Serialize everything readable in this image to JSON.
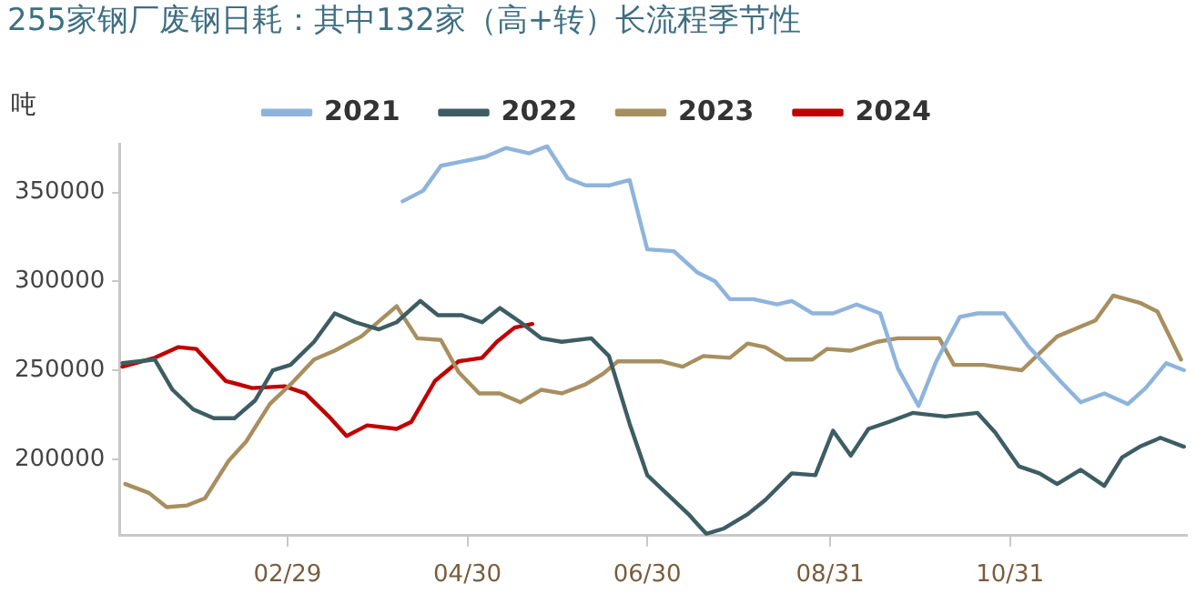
{
  "chart_data": {
    "type": "line",
    "title": "255家钢厂废钢日耗：其中132家（高+转）长流程季节性",
    "ylabel": "吨",
    "legend": "top",
    "grid": false,
    "marker": "none",
    "line_style": "solid",
    "xlim": [
      "--01-03",
      "--12-30"
    ],
    "ylim": [
      157000,
      377000
    ],
    "xticks": [
      {
        "value": "--02-29",
        "label": "02/29"
      },
      {
        "value": "--04-30",
        "label": "04/30"
      },
      {
        "value": "--06-30",
        "label": "06/30"
      },
      {
        "value": "--08-31",
        "label": "08/31"
      },
      {
        "value": "--10-31",
        "label": "10/31"
      }
    ],
    "yticks": [
      200000,
      250000,
      300000,
      350000
    ],
    "series": [
      {
        "name": "2021",
        "color": "#8fb4dc",
        "x": [
          "--04-08",
          "--04-15",
          "--04-21",
          "--04-27",
          "--05-06",
          "--05-13",
          "--05-21",
          "--05-27",
          "--06-03",
          "--06-09",
          "--06-17",
          "--06-24",
          "--06-30",
          "--07-09",
          "--07-17",
          "--07-23",
          "--07-28",
          "--08-05",
          "--08-13",
          "--08-18",
          "--08-25",
          "--09-01",
          "--09-09",
          "--09-17",
          "--09-23",
          "--09-30",
          "--10-06",
          "--10-14",
          "--10-20",
          "--10-29",
          "--11-06",
          "--11-17",
          "--11-24",
          "--12-02",
          "--12-10",
          "--12-16",
          "--12-23",
          "--12-29"
        ],
        "values": [
          345000,
          351000,
          365000,
          367000,
          370000,
          375000,
          372000,
          376000,
          358000,
          354000,
          354000,
          357000,
          318000,
          317000,
          305000,
          300000,
          290000,
          290000,
          287000,
          289000,
          282000,
          282000,
          287000,
          282000,
          251000,
          230000,
          255000,
          280000,
          282000,
          282000,
          264000,
          244000,
          232000,
          237000,
          231000,
          240000,
          254000,
          250000
        ]
      },
      {
        "name": "2022",
        "color": "#3d5d63",
        "x": [
          "--01-04",
          "--01-15",
          "--01-21",
          "--01-28",
          "--02-04",
          "--02-11",
          "--02-18",
          "--02-24",
          "--03-01",
          "--03-09",
          "--03-16",
          "--03-23",
          "--03-31",
          "--04-06",
          "--04-14",
          "--04-20",
          "--04-28",
          "--05-05",
          "--05-11",
          "--05-18",
          "--05-25",
          "--06-01",
          "--06-11",
          "--06-17",
          "--06-24",
          "--06-30",
          "--07-07",
          "--07-14",
          "--07-20",
          "--07-26",
          "--08-03",
          "--08-09",
          "--08-18",
          "--08-26",
          "--09-01",
          "--09-07",
          "--09-13",
          "--09-20",
          "--09-28",
          "--10-09",
          "--10-20",
          "--10-26",
          "--11-03",
          "--11-10",
          "--11-16",
          "--11-24",
          "--12-02",
          "--12-08",
          "--12-14",
          "--12-21",
          "--12-29"
        ],
        "values": [
          254000,
          256000,
          239000,
          228000,
          223000,
          223000,
          233000,
          250000,
          253000,
          266000,
          282000,
          277000,
          273000,
          277000,
          289000,
          281000,
          281000,
          277000,
          285000,
          277000,
          268000,
          266000,
          268000,
          258000,
          220000,
          191000,
          180000,
          169000,
          158000,
          161000,
          169000,
          177000,
          192000,
          191000,
          216000,
          202000,
          217000,
          221000,
          226000,
          224000,
          226000,
          215000,
          196000,
          192000,
          186000,
          194000,
          185000,
          201000,
          207000,
          212000,
          207000
        ]
      },
      {
        "name": "2023",
        "color": "#a88f5f",
        "x": [
          "--01-05",
          "--01-13",
          "--01-19",
          "--01-26",
          "--02-01",
          "--02-09",
          "--02-15",
          "--02-23",
          "--03-01",
          "--03-09",
          "--03-16",
          "--03-25",
          "--04-06",
          "--04-13",
          "--04-21",
          "--04-27",
          "--05-04",
          "--05-11",
          "--05-18",
          "--05-25",
          "--06-01",
          "--06-09",
          "--06-11",
          "--06-15",
          "--06-20",
          "--06-28",
          "--07-05",
          "--07-12",
          "--07-19",
          "--07-28",
          "--08-03",
          "--08-09",
          "--08-16",
          "--08-25",
          "--08-30",
          "--09-07",
          "--09-16",
          "--09-23",
          "--10-07",
          "--10-12",
          "--10-22",
          "--11-04",
          "--11-16",
          "--11-29",
          "--12-05",
          "--12-14",
          "--12-20",
          "--12-28"
        ],
        "values": [
          186000,
          181000,
          173000,
          174000,
          178000,
          199000,
          210000,
          231000,
          242000,
          256000,
          261000,
          269000,
          286000,
          268000,
          267000,
          249000,
          237000,
          237000,
          232000,
          239000,
          237000,
          242000,
          244000,
          248000,
          255000,
          255000,
          255000,
          252000,
          258000,
          257000,
          265000,
          263000,
          256000,
          256000,
          262000,
          261000,
          266000,
          268000,
          268000,
          253000,
          253000,
          250000,
          269000,
          278000,
          292000,
          288000,
          283000,
          256000
        ]
      },
      {
        "name": "2024",
        "color": "#c00000",
        "x": [
          "--01-04",
          "--01-15",
          "--01-23",
          "--01-29",
          "--02-08",
          "--02-17",
          "--02-28",
          "--03-06",
          "--03-14",
          "--03-20",
          "--03-27",
          "--04-06",
          "--04-11",
          "--04-19",
          "--04-27",
          "--05-05",
          "--05-10",
          "--05-16",
          "--05-22"
        ],
        "values": [
          252000,
          257000,
          263000,
          262000,
          244000,
          240000,
          241000,
          237000,
          224000,
          213000,
          219000,
          217000,
          221000,
          244000,
          255000,
          257000,
          266000,
          274000,
          276000
        ]
      }
    ]
  }
}
